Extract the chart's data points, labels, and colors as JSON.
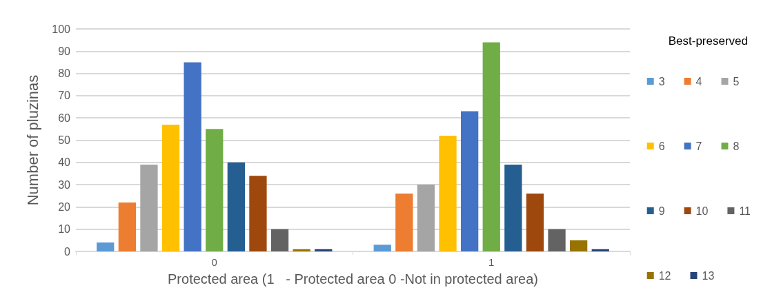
{
  "chart_data": {
    "type": "bar",
    "xlabel": "Protected area (1   - Protected area 0 -Not in protected area)",
    "ylabel": "Number of pluzinas",
    "legend_title": "Best-preserved",
    "categories": [
      "0",
      "1"
    ],
    "series": [
      {
        "name": "3",
        "color": "#5b9bd5",
        "values": [
          4,
          3
        ]
      },
      {
        "name": "4",
        "color": "#ed7d31",
        "values": [
          22,
          26
        ]
      },
      {
        "name": "5",
        "color": "#a5a5a5",
        "values": [
          39,
          30
        ]
      },
      {
        "name": "6",
        "color": "#ffc000",
        "values": [
          57,
          52
        ]
      },
      {
        "name": "7",
        "color": "#4472c4",
        "values": [
          85,
          63
        ]
      },
      {
        "name": "8",
        "color": "#70ad47",
        "values": [
          55,
          94
        ]
      },
      {
        "name": "9",
        "color": "#255e91",
        "values": [
          40,
          39
        ]
      },
      {
        "name": "10",
        "color": "#9e480e",
        "values": [
          34,
          26
        ]
      },
      {
        "name": "11",
        "color": "#636363",
        "values": [
          10,
          10
        ]
      },
      {
        "name": "12",
        "color": "#997300",
        "values": [
          1,
          5
        ]
      },
      {
        "name": "13",
        "color": "#264478",
        "values": [
          1,
          1
        ]
      }
    ],
    "ylim": [
      0,
      100
    ],
    "yticks": [
      0,
      10,
      20,
      30,
      40,
      50,
      60,
      70,
      80,
      90,
      100
    ],
    "grid": "y",
    "legend": "right"
  }
}
